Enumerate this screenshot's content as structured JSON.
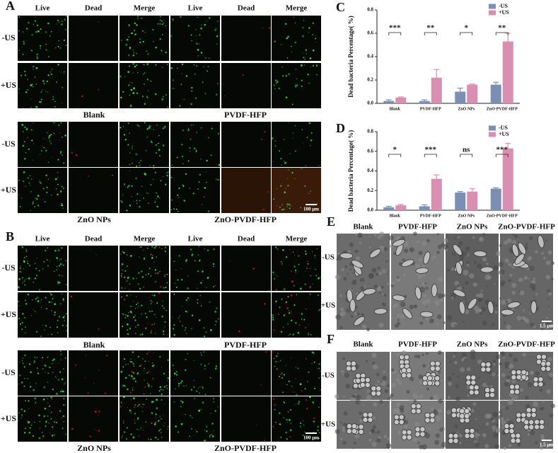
{
  "panel_a": {
    "label": "A",
    "columns": [
      "Live",
      "Dead",
      "Merge",
      "Live",
      "Dead",
      "Merge"
    ],
    "rows": [
      "-US",
      "+US"
    ],
    "groups": [
      "Blank",
      "PVDF-HFP",
      "ZnO NPs",
      "ZnO-PVDF-HFP"
    ],
    "scale_bar": "100 μm"
  },
  "panel_b": {
    "label": "B",
    "columns": [
      "Live",
      "Dead",
      "Merge",
      "Live",
      "Dead",
      "Merge"
    ],
    "rows": [
      "-US",
      "+US"
    ],
    "groups": [
      "Blank",
      "PVDF-HFP",
      "ZnO NPs",
      "ZnO-PVDF-HFP"
    ],
    "scale_bar": "100 μm"
  },
  "chart_data": [
    {
      "type": "bar",
      "label": "C",
      "y_label": "Dead bacteria Percentage( %)",
      "categories": [
        "Blank",
        "PVDF-HFP",
        "ZnO NPs",
        "ZnO-PVDF-HFP"
      ],
      "series": [
        {
          "name": "-US",
          "color": "#7b8fb3",
          "values": [
            0.02,
            0.02,
            0.1,
            0.16
          ],
          "errors": [
            0.01,
            0.01,
            0.03,
            0.02
          ]
        },
        {
          "name": "+US",
          "color": "#d98fb2",
          "values": [
            0.05,
            0.22,
            0.16,
            0.53
          ],
          "errors": [
            0.005,
            0.07,
            0.005,
            0.07
          ]
        }
      ],
      "significance": [
        "***",
        "**",
        "*",
        "**"
      ],
      "ylim": [
        0,
        0.8
      ],
      "yticks": [
        {
          "value": 0,
          "label": "0.0"
        },
        0.2,
        0.4,
        0.6,
        0.8
      ],
      "legend": "upper right"
    },
    {
      "type": "bar",
      "label": "D",
      "y_label": "Dead bacteria Percentage( %)",
      "categories": [
        "Blank",
        "PVDF-HFP",
        "ZnO NPs",
        "ZnO-PVDF-HFP"
      ],
      "series": [
        {
          "name": "-US",
          "color": "#7b8fb3",
          "values": [
            0.03,
            0.04,
            0.18,
            0.22
          ],
          "errors": [
            0.01,
            0.015,
            0.01,
            0.01
          ]
        },
        {
          "name": "+US",
          "color": "#d98fb2",
          "values": [
            0.05,
            0.32,
            0.19,
            0.63
          ],
          "errors": [
            0.01,
            0.04,
            0.03,
            0.05
          ]
        }
      ],
      "significance": [
        "*",
        "***",
        "ns",
        "***"
      ],
      "ylim": [
        0,
        0.8
      ],
      "yticks": [
        {
          "value": 0,
          "label": "0.0"
        },
        0.2,
        0.4,
        0.6,
        0.8
      ],
      "legend": "upper right"
    }
  ],
  "panel_e": {
    "label": "E",
    "columns": [
      "Blank",
      "PVDF-HFP",
      "ZnO NPs",
      "ZnO-PVDF-HFP"
    ],
    "rows": [
      "-US",
      "+US"
    ],
    "scale_bar": "1.5 μm"
  },
  "panel_f": {
    "label": "F",
    "columns": [
      "Blank",
      "PVDF-HFP",
      "ZnO NPs",
      "ZnO-PVDF-HFP"
    ],
    "rows": [
      "-US",
      "+US"
    ],
    "scale_bar": "1.5 μm"
  }
}
